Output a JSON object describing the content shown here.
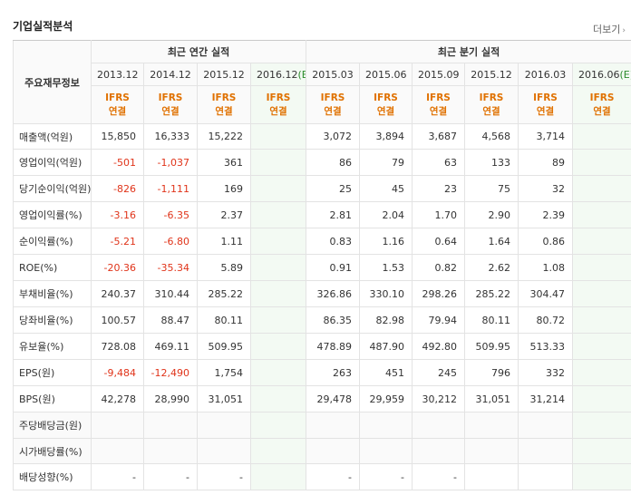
{
  "title": "기업실적분석",
  "more": "더보기",
  "row_header": "주요재무정보",
  "groups": {
    "annual": "최근 연간 실적",
    "quarterly": "최근 분기 실적"
  },
  "periods": [
    {
      "label": "2013.12",
      "est": false
    },
    {
      "label": "2014.12",
      "est": false
    },
    {
      "label": "2015.12",
      "est": false
    },
    {
      "label": "2016.12",
      "est": true
    },
    {
      "label": "2015.03",
      "est": false
    },
    {
      "label": "2015.06",
      "est": false
    },
    {
      "label": "2015.09",
      "est": false
    },
    {
      "label": "2015.12",
      "est": false
    },
    {
      "label": "2016.03",
      "est": false
    },
    {
      "label": "2016.06",
      "est": true
    }
  ],
  "est_mark": "(E)",
  "ifrs": {
    "line1": "IFRS",
    "line2": "연결"
  },
  "rows": [
    {
      "label": "매출액(억원)",
      "values": [
        "15,850",
        "16,333",
        "15,222",
        "",
        "3,072",
        "3,894",
        "3,687",
        "4,568",
        "3,714",
        ""
      ]
    },
    {
      "label": "영업이익(억원)",
      "values": [
        "-501",
        "-1,037",
        "361",
        "",
        "86",
        "79",
        "63",
        "133",
        "89",
        ""
      ]
    },
    {
      "label": "당기순이익(억원)",
      "values": [
        "-826",
        "-1,111",
        "169",
        "",
        "25",
        "45",
        "23",
        "75",
        "32",
        ""
      ]
    },
    {
      "label": "영업이익률(%)",
      "values": [
        "-3.16",
        "-6.35",
        "2.37",
        "",
        "2.81",
        "2.04",
        "1.70",
        "2.90",
        "2.39",
        ""
      ]
    },
    {
      "label": "순이익률(%)",
      "values": [
        "-5.21",
        "-6.80",
        "1.11",
        "",
        "0.83",
        "1.16",
        "0.64",
        "1.64",
        "0.86",
        ""
      ]
    },
    {
      "label": "ROE(%)",
      "values": [
        "-20.36",
        "-35.34",
        "5.89",
        "",
        "0.91",
        "1.53",
        "0.82",
        "2.62",
        "1.08",
        ""
      ]
    },
    {
      "label": "부채비율(%)",
      "values": [
        "240.37",
        "310.44",
        "285.22",
        "",
        "326.86",
        "330.10",
        "298.26",
        "285.22",
        "304.47",
        ""
      ]
    },
    {
      "label": "당좌비율(%)",
      "values": [
        "100.57",
        "88.47",
        "80.11",
        "",
        "86.35",
        "82.98",
        "79.94",
        "80.11",
        "80.72",
        ""
      ]
    },
    {
      "label": "유보율(%)",
      "values": [
        "728.08",
        "469.11",
        "509.95",
        "",
        "478.89",
        "487.90",
        "492.80",
        "509.95",
        "513.33",
        ""
      ]
    },
    {
      "label": "EPS(원)",
      "values": [
        "-9,484",
        "-12,490",
        "1,754",
        "",
        "263",
        "451",
        "245",
        "796",
        "332",
        ""
      ]
    },
    {
      "label": "BPS(원)",
      "values": [
        "42,278",
        "28,990",
        "31,051",
        "",
        "29,478",
        "29,959",
        "30,212",
        "31,051",
        "31,214",
        ""
      ]
    },
    {
      "label": "주당배당금(원)",
      "values": [
        "",
        "",
        "",
        "",
        "",
        "",
        "",
        "",
        "",
        ""
      ]
    },
    {
      "label": "시가배당률(%)",
      "values": [
        "",
        "",
        "",
        "",
        "",
        "",
        "",
        "",
        "",
        ""
      ]
    },
    {
      "label": "배당성향(%)",
      "values": [
        "-",
        "-",
        "-",
        "",
        "-",
        "-",
        "-",
        "",
        "",
        ""
      ]
    }
  ]
}
